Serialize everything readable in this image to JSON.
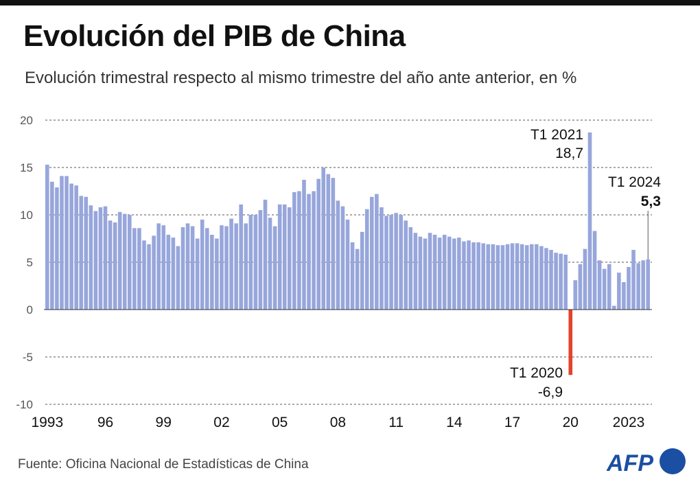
{
  "title": "Evolución del PIB de China",
  "subtitle": "Evolución trimestral respecto al mismo trimestre del año ante anterior, en %",
  "source": "Fuente: Oficina Nacional de Estadísticas de China",
  "logo_text": "AFP",
  "colors": {
    "bar": "#97a6db",
    "negative": "#e2432c",
    "logo": "#1b4fa3"
  },
  "chart_data": {
    "type": "bar",
    "title": "",
    "xlabel": "",
    "ylabel": "",
    "ylim": [
      -10,
      20
    ],
    "yticks": [
      20,
      15,
      10,
      5,
      0,
      -5,
      -10
    ],
    "xtick_labels": [
      "1993",
      "96",
      "99",
      "02",
      "05",
      "08",
      "11",
      "14",
      "17",
      "20",
      "2023"
    ],
    "xtick_years": [
      1993,
      1996,
      1999,
      2002,
      2005,
      2008,
      2011,
      2014,
      2017,
      2020,
      2023
    ],
    "grid": true,
    "start": "1993 T1",
    "values": [
      15.3,
      13.5,
      12.9,
      14.1,
      14.1,
      13.3,
      13.1,
      12.0,
      11.9,
      11.0,
      10.4,
      10.8,
      10.9,
      9.4,
      9.2,
      10.3,
      10.1,
      10.0,
      8.6,
      8.6,
      7.3,
      6.9,
      7.8,
      9.1,
      8.9,
      7.9,
      7.6,
      6.7,
      8.7,
      9.1,
      8.8,
      7.5,
      9.5,
      8.6,
      7.9,
      7.5,
      8.9,
      8.8,
      9.6,
      9.1,
      11.1,
      9.1,
      10.0,
      10.0,
      10.5,
      11.6,
      9.7,
      8.8,
      11.1,
      11.1,
      10.8,
      12.4,
      12.5,
      13.7,
      12.2,
      12.5,
      13.8,
      15.0,
      14.3,
      13.9,
      11.5,
      10.9,
      9.5,
      7.1,
      6.4,
      8.2,
      10.6,
      11.9,
      12.2,
      10.8,
      9.9,
      10.0,
      10.2,
      10.0,
      9.4,
      8.7,
      8.1,
      7.7,
      7.5,
      8.1,
      7.9,
      7.6,
      7.9,
      7.7,
      7.5,
      7.6,
      7.2,
      7.3,
      7.1,
      7.1,
      7.0,
      6.9,
      6.9,
      6.8,
      6.8,
      6.9,
      7.0,
      7.0,
      6.9,
      6.8,
      6.9,
      6.9,
      6.7,
      6.5,
      6.3,
      6.0,
      5.9,
      5.8,
      -6.9,
      3.1,
      4.8,
      6.4,
      18.7,
      8.3,
      5.2,
      4.3,
      4.8,
      0.4,
      3.9,
      2.9,
      4.5,
      6.3,
      4.9,
      5.2,
      5.3
    ],
    "annotations": [
      {
        "period": "T1 2021",
        "label": "T1 2021",
        "value_label": "18,7"
      },
      {
        "period": "T1 2024",
        "label": "T1 2024",
        "value_label": "5,3"
      },
      {
        "period": "T1 2020",
        "label": "T1 2020",
        "value_label": "-6,9"
      }
    ]
  }
}
